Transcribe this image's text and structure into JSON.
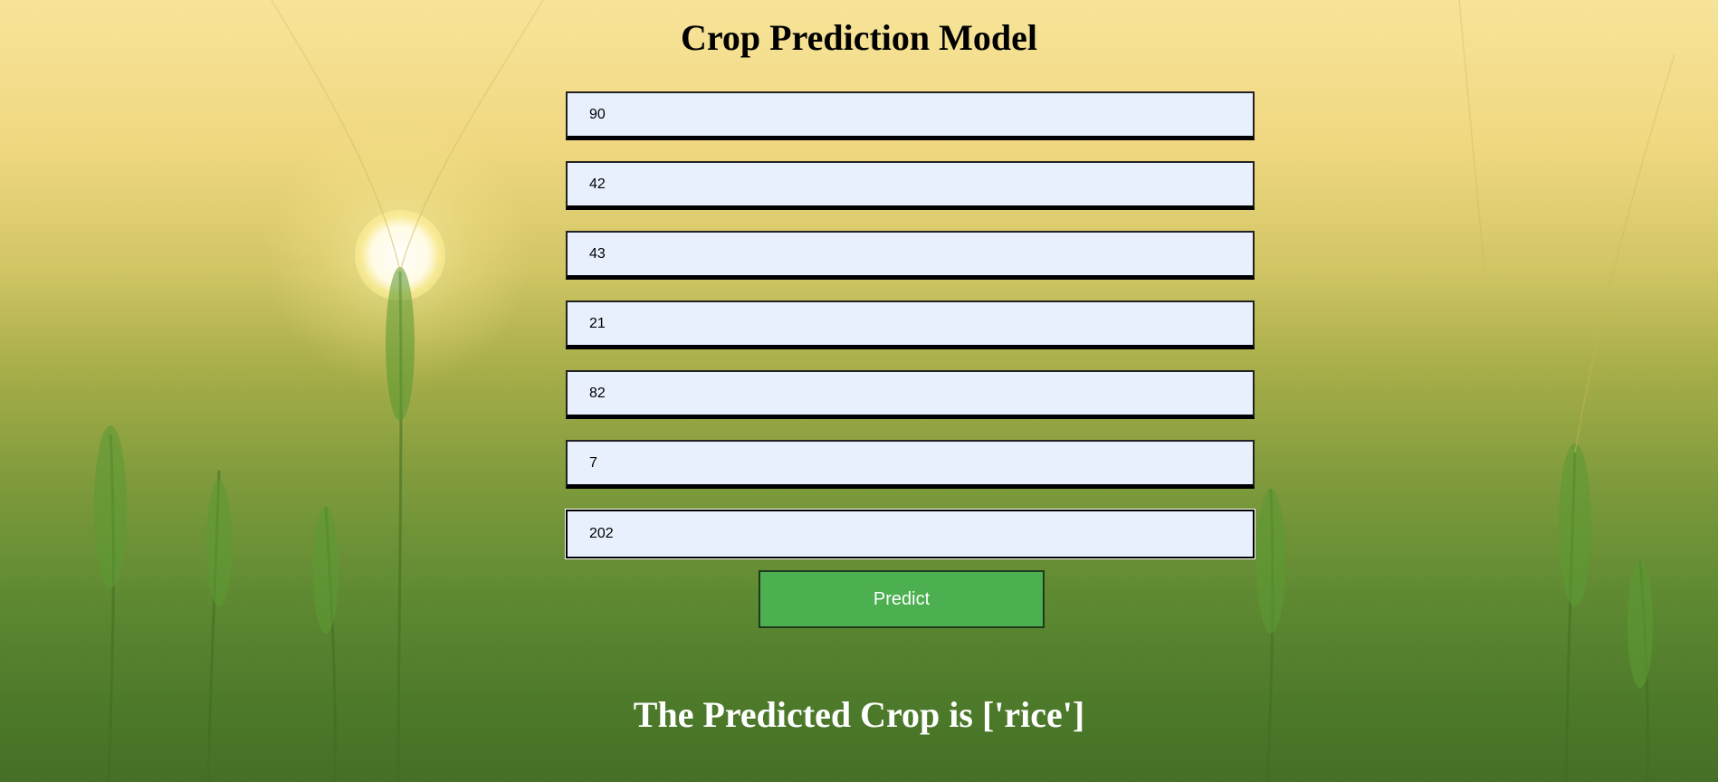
{
  "page": {
    "title": "Crop Prediction Model"
  },
  "form": {
    "fields": [
      {
        "value": "90"
      },
      {
        "value": "42"
      },
      {
        "value": "43"
      },
      {
        "value": "21"
      },
      {
        "value": "82"
      },
      {
        "value": "7"
      },
      {
        "value": "202"
      }
    ],
    "submit_label": "Predict"
  },
  "result": {
    "text": "The Predicted Crop is ['rice']"
  },
  "colors": {
    "button_bg": "#4caf50",
    "input_bg": "#e8f0fe",
    "result_text": "#ffffff"
  }
}
